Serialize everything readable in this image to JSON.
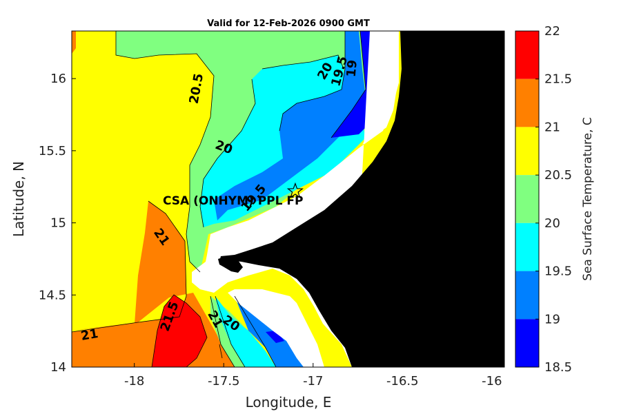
{
  "title": "Valid for 12-Feb-2026 0900 GMT",
  "xlabel": "Longitude, E",
  "ylabel": "Latitude, N",
  "colorbar_label": "Sea Surface Temperature, C",
  "site_label": "CSA (ONHYM) PPL FP",
  "x_ticks": [
    "-18",
    "-17.5",
    "-17",
    "-16.5",
    "-16"
  ],
  "y_ticks": [
    "16",
    "15.5",
    "15",
    "14.5",
    "14"
  ],
  "colorbar_ticks": [
    "22",
    "21.5",
    "21",
    "20.5",
    "20",
    "19.5",
    "19",
    "18.5"
  ],
  "colors": {
    "band_18_5_19": "#0000ff",
    "band_19_19_5": "#0080ff",
    "band_19_5_20": "#00ffff",
    "band_20_20_5": "#80ff80",
    "band_20_5_21": "#ffff00",
    "band_21_21_5": "#ff8000",
    "band_21_5_22": "#ff0000",
    "land": "#000000",
    "masked": "#ffffff"
  },
  "contour_labels": [
    {
      "text": "20.5",
      "lon": -17.65,
      "lat": 15.93,
      "angle": -80
    },
    {
      "text": "20",
      "lon": -16.93,
      "lat": 16.05,
      "angle": -60
    },
    {
      "text": "19.5",
      "lon": -16.85,
      "lat": 16.05,
      "angle": -75
    },
    {
      "text": "19",
      "lon": -16.78,
      "lat": 16.07,
      "angle": -85
    },
    {
      "text": "20",
      "lon": -17.5,
      "lat": 15.52,
      "angle": 20
    },
    {
      "text": "19.5",
      "lon": -17.33,
      "lat": 15.17,
      "angle": -50
    },
    {
      "text": "21",
      "lon": -17.85,
      "lat": 14.9,
      "angle": 55
    },
    {
      "text": "21",
      "lon": -18.25,
      "lat": 14.22,
      "angle": -10
    },
    {
      "text": "21.5",
      "lon": -17.8,
      "lat": 14.35,
      "angle": -70
    },
    {
      "text": "21",
      "lon": -17.55,
      "lat": 14.33,
      "angle": 60
    },
    {
      "text": "20",
      "lon": -17.46,
      "lat": 14.3,
      "angle": 35
    }
  ],
  "site_marker": {
    "lon": -17.1,
    "lat": 15.22,
    "symbol": "star"
  }
}
